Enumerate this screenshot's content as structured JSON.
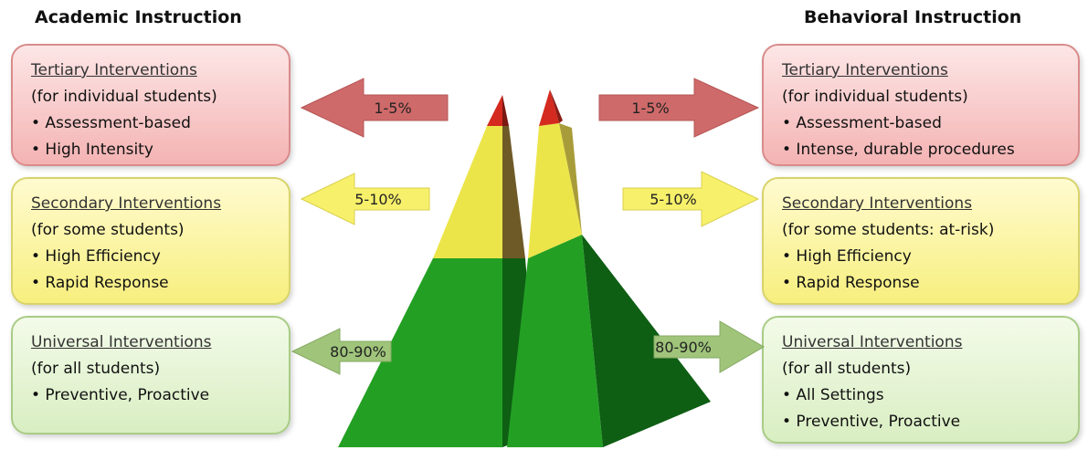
{
  "headings": {
    "left": "Academic Instruction",
    "right": "Behavioral Instruction"
  },
  "academic": {
    "tertiary": {
      "title": "Tertiary Interventions",
      "subtitle": "(for individual students)",
      "items": [
        "• Assessment-based",
        "• High Intensity"
      ],
      "percent": "1-5%"
    },
    "secondary": {
      "title": "Secondary Interventions",
      "subtitle": "(for some students)",
      "items": [
        "• High Efficiency",
        "• Rapid Response"
      ],
      "percent": "5-10%"
    },
    "universal": {
      "title": "Universal Interventions",
      "subtitle": "(for all students)",
      "items": [
        "• Preventive, Proactive"
      ],
      "percent": "80-90%"
    }
  },
  "behavioral": {
    "tertiary": {
      "title": "Tertiary Interventions",
      "subtitle": "(for individual students)",
      "items": [
        "• Assessment-based",
        "• Intense, durable procedures"
      ],
      "percent": "1-5%"
    },
    "secondary": {
      "title": "Secondary Interventions",
      "subtitle": "(for some students: at-risk)",
      "items": [
        "•  High Efficiency",
        "•  Rapid Response"
      ],
      "percent": "5-10%"
    },
    "universal": {
      "title": "Universal Interventions",
      "subtitle": "(for all students)",
      "items": [
        "• All Settings",
        "• Preventive, Proactive"
      ],
      "percent": "80-90%"
    }
  },
  "colors": {
    "tier_red": "#c83c3c",
    "tier_yellow": "#f0e34a",
    "tier_green": "#1f9b1f",
    "arrow_red": "#cf6a6a",
    "arrow_yellow": "#f7f06a",
    "arrow_green": "#9fc47a"
  }
}
